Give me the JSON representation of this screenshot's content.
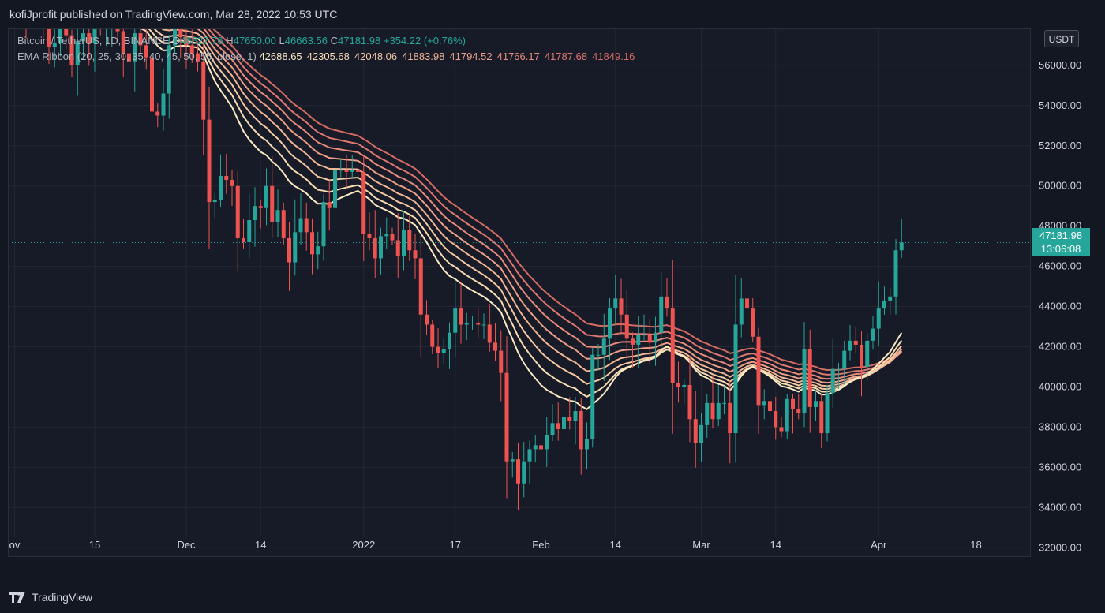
{
  "publisher_line": "kofiJprofit published on TradingView.com, Mar 28, 2022 10:53 UTC",
  "brand": {
    "name": "TradingView",
    "logo_icon": "tradingview-logo-icon"
  },
  "legend": {
    "symbol": "Bitcoin / TetherUS, 1D, BINANCE",
    "open_label": "O",
    "open": "46827.76",
    "high_label": "H",
    "high": "47650.00",
    "low_label": "L",
    "low": "46663.56",
    "close_label": "C",
    "close": "47181.98",
    "change": "+354.22 (+0.76%)",
    "ema_label": "EMA Ribbon (20, 25, 30, 35, 40, 45, 50, 55, close, 1)",
    "ema_values": [
      "42688.65",
      "42305.68",
      "42048.06",
      "41883.98",
      "41794.52",
      "41766.17",
      "41787.68",
      "41849.16"
    ]
  },
  "price_axis": {
    "currency": "USDT",
    "current_price": "47181.98",
    "countdown": "13:06:08"
  },
  "colors": {
    "up": "#26a69a",
    "down": "#ef5350",
    "ema_ribbon": [
      "#fbe9c4",
      "#f8dcb4",
      "#f5c9a3",
      "#f2b595",
      "#ee9f87",
      "#e88b7c",
      "#df7771",
      "#d66b64"
    ]
  },
  "chart_data": {
    "type": "candlestick",
    "ylim": [
      31500,
      57800
    ],
    "y_ticks": [
      32000,
      34000,
      36000,
      38000,
      40000,
      42000,
      44000,
      46000,
      48000,
      50000,
      52000,
      54000,
      56000
    ],
    "x_ticks": [
      {
        "label": "ov",
        "day": 0
      },
      {
        "label": "15",
        "day": 14
      },
      {
        "label": "Dec",
        "day": 30
      },
      {
        "label": "14",
        "day": 43
      },
      {
        "label": "2022",
        "day": 61
      },
      {
        "label": "17",
        "day": 77
      },
      {
        "label": "Feb",
        "day": 92
      },
      {
        "label": "14",
        "day": 105
      },
      {
        "label": "Mar",
        "day": 120
      },
      {
        "label": "14",
        "day": 133
      },
      {
        "label": "Apr",
        "day": 151
      },
      {
        "label": "18",
        "day": 168
      }
    ],
    "candles_close": [
      59000,
      59700,
      58300,
      60300,
      60600,
      58500,
      56900,
      57100,
      58100,
      57500,
      56000,
      57200,
      57600,
      57100,
      58500,
      57800,
      58100,
      58600,
      57700,
      56600,
      56200,
      57600,
      57000,
      56400,
      53700,
      53500,
      54600,
      57000,
      58500,
      57400,
      57000,
      56600,
      56200,
      53300,
      49200,
      49300,
      50500,
      50300,
      50000,
      47400,
      47200,
      48300,
      49000,
      48900,
      50000,
      48200,
      48800,
      47400,
      46200,
      47700,
      48400,
      47700,
      46600,
      47000,
      49200,
      48900,
      50800,
      50800,
      50700,
      50800,
      50700,
      47600,
      47400,
      46400,
      47500,
      47600,
      47300,
      46500,
      47800,
      46800,
      46400,
      43600,
      43100,
      42000,
      41700,
      41900,
      42700,
      43900,
      43100,
      43200,
      43200,
      43100,
      43100,
      42200,
      41800,
      40700,
      36300,
      36400,
      35200,
      36300,
      36900,
      37100,
      36900,
      37600,
      38200,
      37900,
      38500,
      38300,
      38800,
      36900,
      37400,
      41600,
      41600,
      42400,
      43900,
      44400,
      43600,
      42400,
      42100,
      42600,
      42600,
      42200,
      42700,
      44500,
      43900,
      40200,
      40000,
      40100,
      38400,
      37200,
      38100,
      39200,
      38400,
      39200,
      39200,
      37700,
      43100,
      44400,
      43900,
      42500,
      39100,
      39300,
      38800,
      38000,
      37800,
      39400,
      38900,
      38700,
      41900,
      39000,
      39300,
      37700,
      39700,
      40900,
      40900,
      41800,
      42300,
      42100,
      41000,
      42300,
      42900,
      43900,
      44300,
      44500,
      46800,
      47182
    ],
    "ema20_last": 42688.65,
    "ema55_last": 41849.16
  }
}
